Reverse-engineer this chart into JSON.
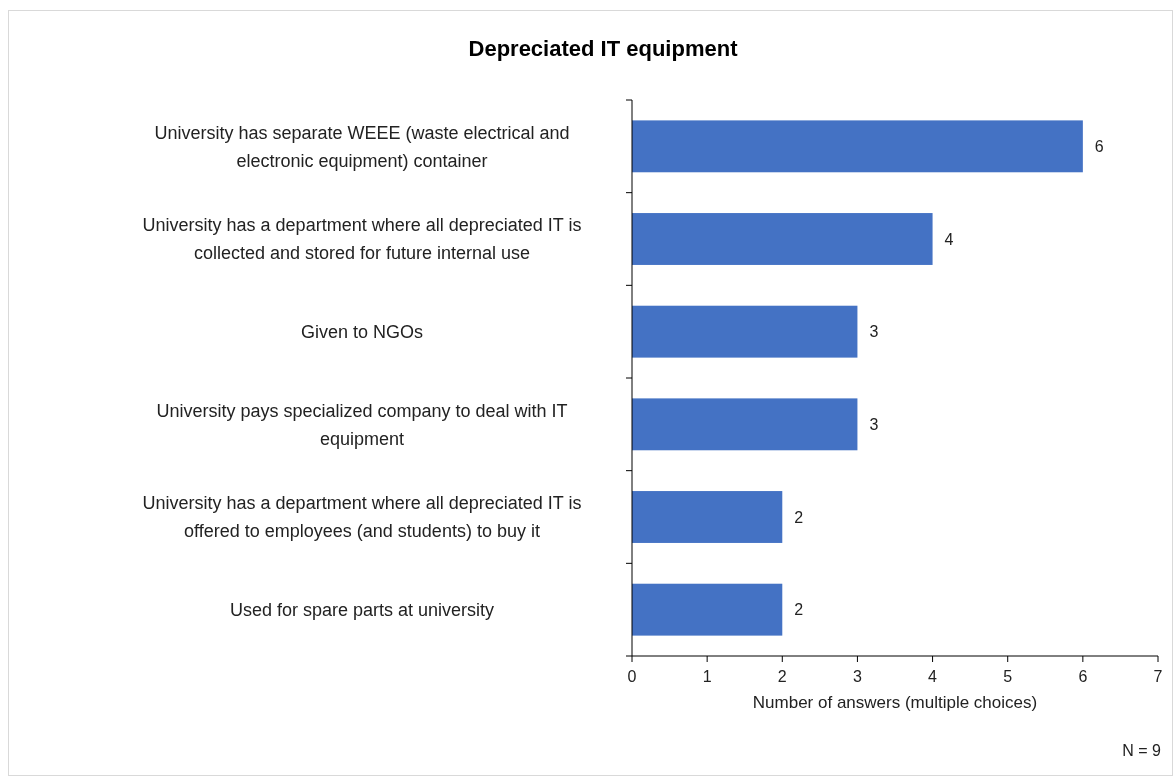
{
  "chart_data": {
    "type": "bar",
    "orientation": "horizontal",
    "title": "Depreciated IT equipment",
    "categories": [
      "University has separate WEEE (waste electrical and electronic equipment) container",
      "University has a department where all depreciated IT is collected and stored for future internal use",
      "Given to NGOs",
      "University pays specialized company to deal with IT equipment",
      "University has a department where all depreciated IT is offered to employees (and students) to buy it",
      "Used for spare parts at university"
    ],
    "values": [
      6,
      4,
      3,
      3,
      2,
      2
    ],
    "color": "#4472c4",
    "xlim": [
      0,
      7
    ],
    "xticks": [
      0,
      1,
      2,
      3,
      4,
      5,
      6,
      7
    ],
    "xlabel": "Number of answers (multiple choices)",
    "data_labels": true,
    "annotations": [
      "N = 9"
    ]
  }
}
